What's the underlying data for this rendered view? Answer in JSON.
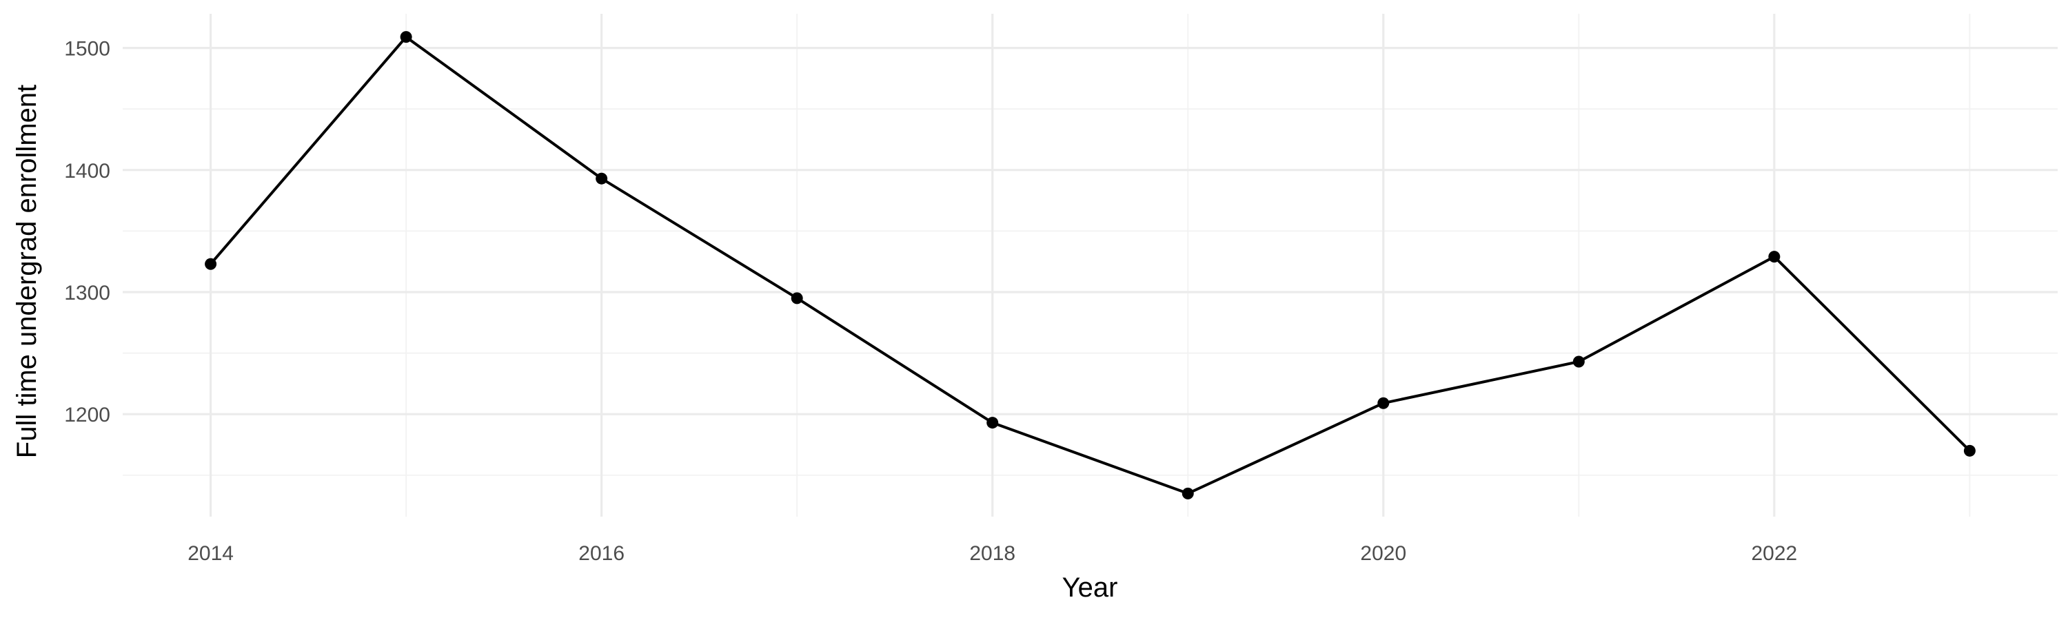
{
  "chart_data": {
    "type": "line",
    "title": "",
    "xlabel": "Year",
    "ylabel": "Full time undergrad enrollment",
    "x": [
      2014,
      2015,
      2016,
      2017,
      2018,
      2019,
      2020,
      2021,
      2022,
      2023
    ],
    "series": [
      {
        "values": [
          1323,
          1509,
          1393,
          1295,
          1193,
          1135,
          1209,
          1243,
          1329,
          1170
        ]
      }
    ],
    "x_ticks": [
      "2014",
      "2016",
      "2018",
      "2020",
      "2022"
    ],
    "y_ticks": [
      "1200",
      "1300",
      "1400",
      "1500"
    ],
    "xlim": [
      2013.55,
      2023.45
    ],
    "ylim": [
      1116,
      1528
    ],
    "grid": true,
    "legend": "none",
    "colors": {
      "line": "#000000",
      "grid": "#ebebeb",
      "tick_text": "#4d4d4d"
    }
  }
}
